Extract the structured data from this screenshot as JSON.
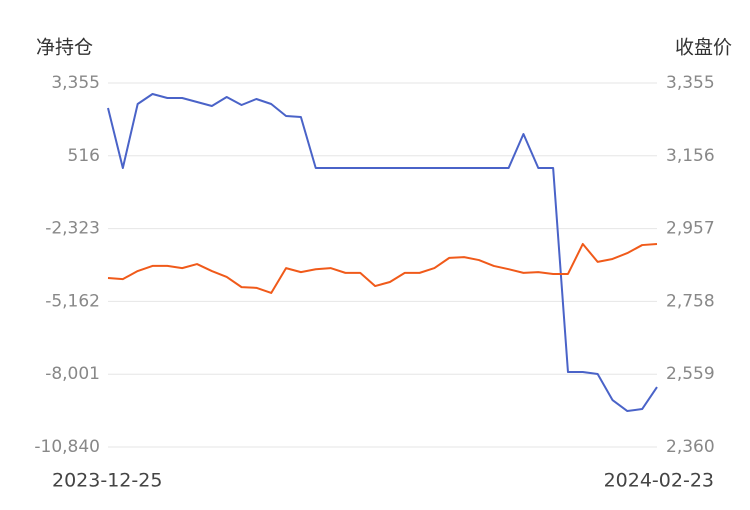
{
  "chart_data": {
    "type": "line",
    "ylabel": "净持仓",
    "y2label": "收盘价",
    "categories": [
      "2023-12-25",
      null,
      null,
      null,
      null,
      null,
      null,
      null,
      null,
      null,
      null,
      null,
      null,
      null,
      null,
      null,
      null,
      null,
      null,
      null,
      null,
      null,
      null,
      null,
      null,
      null,
      null,
      null,
      null,
      null,
      null,
      null,
      null,
      null,
      null,
      null,
      null,
      "2024-02-23"
    ],
    "ylim": [
      -10840,
      3355
    ],
    "yticks": [
      {
        "value": 3355,
        "label": "3,355"
      },
      516,
      {
        "value": -2323,
        "label": "-2,323"
      },
      {
        "value": -5162,
        "label": "-5,162"
      },
      {
        "value": -8001,
        "label": "-8,001"
      },
      {
        "value": -10840,
        "label": "-10,840"
      }
    ],
    "y2lim": [
      2360,
      3355
    ],
    "y2ticks": [
      {
        "value": 3355,
        "label": "3,355"
      },
      {
        "value": 3156,
        "label": "3,156"
      },
      {
        "value": 2957,
        "label": "2,957"
      },
      {
        "value": 2758,
        "label": "2,758"
      },
      {
        "value": 2559,
        "label": "2,559"
      },
      {
        "value": 2360,
        "label": "2,360"
      }
    ],
    "grid": true,
    "series": [
      {
        "color": "#4a63c8",
        "values": [
          2380,
          40,
          2536,
          2926,
          2770,
          2770,
          2614,
          2458,
          2809,
          2497,
          2731,
          2536,
          2068,
          2029,
          40,
          40,
          40,
          40,
          40,
          40,
          40,
          40,
          40,
          40,
          40,
          40,
          40,
          40,
          1366,
          40,
          40,
          -7916,
          -7916,
          -7994,
          -9008,
          -9437,
          -9359,
          -8501
        ]
      },
      {
        "color": "#f05a1a",
        "axis": "y2",
        "values": [
          2822,
          2819,
          2841,
          2855,
          2855,
          2849,
          2860,
          2841,
          2825,
          2797,
          2795,
          2781,
          2849,
          2838,
          2846,
          2849,
          2836,
          2836,
          2800,
          2811,
          2836,
          2836,
          2849,
          2877,
          2879,
          2871,
          2855,
          2846,
          2836,
          2838,
          2833,
          2833,
          2915,
          2866,
          2874,
          2890,
          2912,
          2915
        ]
      }
    ]
  }
}
